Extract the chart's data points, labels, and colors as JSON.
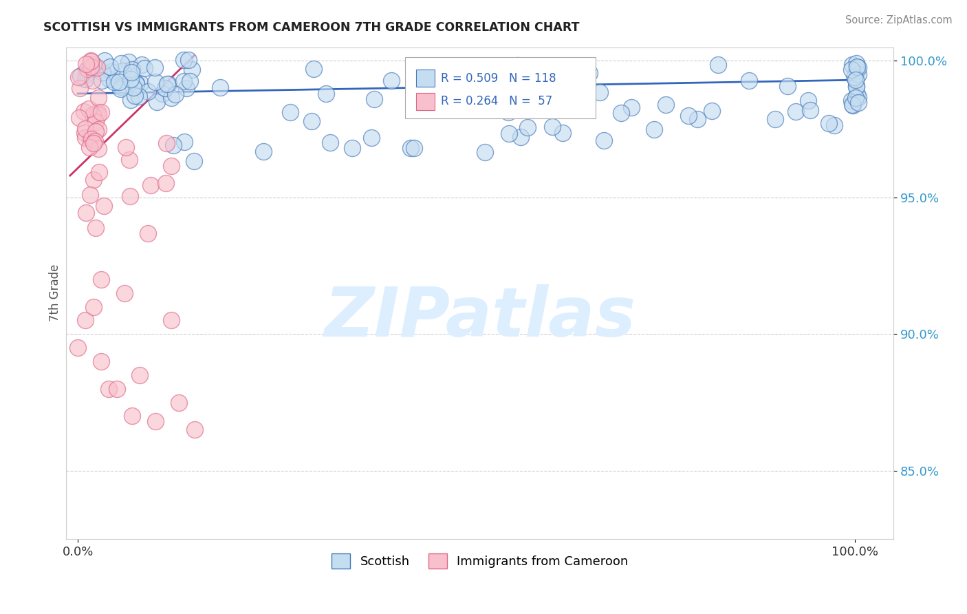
{
  "title": "SCOTTISH VS IMMIGRANTS FROM CAMEROON 7TH GRADE CORRELATION CHART",
  "source": "Source: ZipAtlas.com",
  "ylabel": "7th Grade",
  "ylim": [
    0.825,
    1.005
  ],
  "xlim": [
    -0.015,
    1.05
  ],
  "yticks": [
    0.85,
    0.9,
    0.95,
    1.0
  ],
  "ytick_labels": [
    "85.0%",
    "90.0%",
    "95.0%",
    "100.0%"
  ],
  "xtick_positions": [
    0.0,
    1.0
  ],
  "xtick_labels": [
    "0.0%",
    "100.0%"
  ],
  "legend_r_blue": "R = 0.509",
  "legend_n_blue": "N = 118",
  "legend_r_pink": "R = 0.264",
  "legend_n_pink": "N =  57",
  "blue_face_color": "#c5ddf0",
  "blue_edge_color": "#4477bb",
  "blue_line_color": "#3366bb",
  "pink_face_color": "#f8c0cc",
  "pink_edge_color": "#dd6688",
  "pink_line_color": "#cc3366",
  "watermark_text": "ZIPatlas",
  "watermark_color": "#ddeeff",
  "bg_color": "#ffffff",
  "grid_color": "#cccccc",
  "title_color": "#222222",
  "source_color": "#888888",
  "ylabel_color": "#555555",
  "ytick_color": "#3399cc",
  "legend_box_color": "#aaaaaa",
  "bottom_legend_labels": [
    "Scottish",
    "Immigrants from Cameroon"
  ]
}
